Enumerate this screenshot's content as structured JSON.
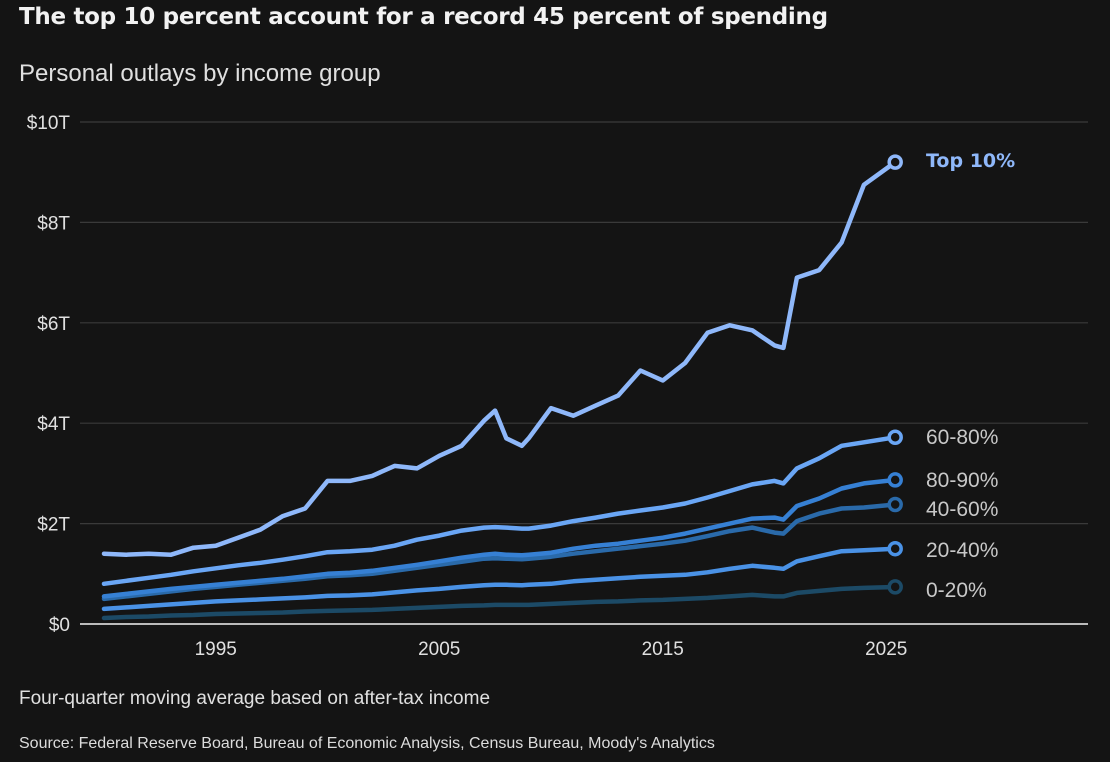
{
  "header": {
    "title": "The top 10 percent account for a record 45 percent of spending",
    "subtitle": "Personal outlays by income group"
  },
  "footer": {
    "note": "Four-quarter moving average based on after-tax income",
    "source": "Source: Federal Reserve Board, Bureau of Economic Analysis, Census Bureau, Moody's Analytics"
  },
  "chart_data": {
    "type": "line",
    "title": "The top 10 percent account for a record 45 percent of spending",
    "subtitle": "Personal outlays by income group",
    "xlabel": "",
    "ylabel": "",
    "xlim": [
      1990,
      2030.5
    ],
    "ylim": [
      0,
      10
    ],
    "grid": true,
    "legend": "direct labels at line ends (right)",
    "y_ticks": [
      {
        "value": 0,
        "label": "$0"
      },
      {
        "value": 2,
        "label": "$2T"
      },
      {
        "value": 4,
        "label": "$4T"
      },
      {
        "value": 6,
        "label": "$6T"
      },
      {
        "value": 8,
        "label": "$8T"
      },
      {
        "value": 10,
        "label": "$10T"
      }
    ],
    "x_ticks": [
      {
        "value": 1995,
        "label": "1995"
      },
      {
        "value": 2005,
        "label": "2005"
      },
      {
        "value": 2015,
        "label": "2015"
      },
      {
        "value": 2025,
        "label": "2025"
      }
    ],
    "x": [
      1990,
      1991,
      1992,
      1993,
      1994,
      1995,
      1996,
      1997,
      1998,
      1999,
      2000,
      2001,
      2002,
      2003,
      2004,
      2005,
      2006,
      2007,
      2007.5,
      2008,
      2008.7,
      2009,
      2010,
      2011,
      2012,
      2013,
      2014,
      2015,
      2016,
      2017,
      2018,
      2019,
      2020,
      2020.4,
      2021,
      2022,
      2023,
      2024,
      2025.4
    ],
    "series": [
      {
        "name": "Top 10%",
        "color": "#8fb8fa",
        "bold_label": true,
        "values": [
          1.4,
          1.38,
          1.4,
          1.38,
          1.52,
          1.56,
          1.72,
          1.88,
          2.15,
          2.3,
          2.85,
          2.85,
          2.95,
          3.15,
          3.1,
          3.35,
          3.55,
          4.05,
          4.25,
          3.7,
          3.55,
          3.7,
          4.3,
          4.15,
          4.35,
          4.55,
          5.05,
          4.85,
          5.2,
          5.8,
          5.95,
          5.85,
          5.55,
          5.5,
          6.9,
          7.05,
          7.6,
          8.75,
          9.2
        ]
      },
      {
        "name": "60-80%",
        "color": "#6aa6f5",
        "bold_label": false,
        "values": [
          0.8,
          0.86,
          0.92,
          0.98,
          1.05,
          1.11,
          1.17,
          1.22,
          1.28,
          1.35,
          1.43,
          1.45,
          1.48,
          1.56,
          1.68,
          1.76,
          1.86,
          1.92,
          1.93,
          1.92,
          1.9,
          1.9,
          1.96,
          2.05,
          2.12,
          2.2,
          2.26,
          2.32,
          2.4,
          2.52,
          2.65,
          2.78,
          2.85,
          2.8,
          3.1,
          3.3,
          3.55,
          3.62,
          3.72
        ]
      },
      {
        "name": "80-90%",
        "color": "#3680d4",
        "bold_label": false,
        "values": [
          0.55,
          0.6,
          0.65,
          0.7,
          0.74,
          0.78,
          0.82,
          0.86,
          0.9,
          0.95,
          1.0,
          1.02,
          1.06,
          1.12,
          1.18,
          1.25,
          1.32,
          1.38,
          1.4,
          1.38,
          1.37,
          1.38,
          1.42,
          1.5,
          1.56,
          1.6,
          1.66,
          1.72,
          1.8,
          1.9,
          2.0,
          2.1,
          2.12,
          2.08,
          2.35,
          2.5,
          2.7,
          2.8,
          2.87
        ]
      },
      {
        "name": "40-60%",
        "color": "#2a6aaa",
        "bold_label": false,
        "values": [
          0.5,
          0.55,
          0.6,
          0.65,
          0.7,
          0.74,
          0.78,
          0.82,
          0.86,
          0.9,
          0.95,
          0.97,
          1.0,
          1.06,
          1.12,
          1.18,
          1.24,
          1.3,
          1.31,
          1.3,
          1.29,
          1.3,
          1.34,
          1.4,
          1.45,
          1.5,
          1.55,
          1.6,
          1.66,
          1.75,
          1.85,
          1.92,
          1.82,
          1.8,
          2.05,
          2.2,
          2.3,
          2.32,
          2.38
        ]
      },
      {
        "name": "20-40%",
        "color": "#4a92e6",
        "bold_label": false,
        "values": [
          0.3,
          0.33,
          0.36,
          0.39,
          0.42,
          0.45,
          0.47,
          0.49,
          0.51,
          0.53,
          0.56,
          0.57,
          0.59,
          0.63,
          0.67,
          0.7,
          0.74,
          0.77,
          0.78,
          0.78,
          0.77,
          0.78,
          0.8,
          0.85,
          0.88,
          0.91,
          0.94,
          0.96,
          0.98,
          1.03,
          1.1,
          1.16,
          1.12,
          1.1,
          1.25,
          1.35,
          1.45,
          1.47,
          1.5
        ]
      },
      {
        "name": "0-20%",
        "color": "#1c4a66",
        "bold_label": false,
        "values": [
          0.12,
          0.14,
          0.15,
          0.17,
          0.18,
          0.2,
          0.21,
          0.22,
          0.23,
          0.25,
          0.26,
          0.27,
          0.28,
          0.3,
          0.32,
          0.34,
          0.36,
          0.37,
          0.38,
          0.38,
          0.38,
          0.38,
          0.4,
          0.42,
          0.44,
          0.45,
          0.47,
          0.48,
          0.5,
          0.52,
          0.55,
          0.58,
          0.55,
          0.55,
          0.62,
          0.66,
          0.7,
          0.72,
          0.74
        ]
      }
    ],
    "labels": [
      {
        "series": "Top 10%",
        "text": "Top 10%",
        "color": "#8fb8fa",
        "bold": true
      },
      {
        "series": "60-80%",
        "text": "60-80%",
        "color": "#c8c8c8",
        "bold": false
      },
      {
        "series": "80-90%",
        "text": "80-90%",
        "color": "#c8c8c8",
        "bold": false
      },
      {
        "series": "40-60%",
        "text": "40-60%",
        "color": "#c8c8c8",
        "bold": false
      },
      {
        "series": "20-40%",
        "text": "20-40%",
        "color": "#c8c8c8",
        "bold": false
      },
      {
        "series": "0-20%",
        "text": "0-20%",
        "color": "#c8c8c8",
        "bold": false
      }
    ],
    "colors": {
      "background": "#141414",
      "gridline": "#3a3a3a",
      "baseline": "#bbbbbb"
    }
  }
}
